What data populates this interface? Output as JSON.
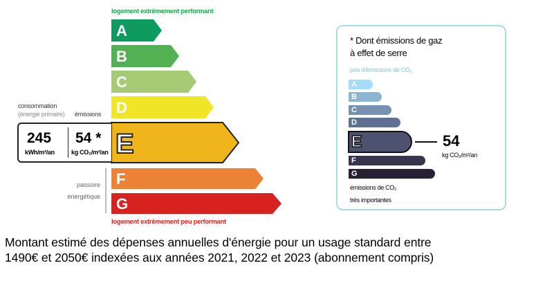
{
  "dpe": {
    "top_caption": "logement extrêmement performant",
    "bottom_caption": "logement extrêmement peu performant",
    "classes": [
      {
        "letter": "A",
        "color": "#0f9b5f"
      },
      {
        "letter": "B",
        "color": "#52b153"
      },
      {
        "letter": "C",
        "color": "#a5cc74"
      },
      {
        "letter": "D",
        "color": "#f0e527"
      },
      {
        "letter": "E",
        "color": "#f0b51a"
      },
      {
        "letter": "F",
        "color": "#eb8235"
      },
      {
        "letter": "G",
        "color": "#d7221f"
      }
    ],
    "current_class": "E",
    "consumption_label_1": "consommation",
    "consumption_label_2": "(énergie primaire)",
    "emissions_label": "émissions",
    "consumption_value": "245",
    "consumption_unit": "kWh/m²/an",
    "emissions_value": "54 *",
    "emissions_unit": "kg CO₂/m²/an",
    "passoire_1": "passoire",
    "passoire_2": "énergétique"
  },
  "ges": {
    "title_1": "* Dont émissions de gaz",
    "title_2": "à effet de serre",
    "top_caption": "peu d'émissions de CO₂",
    "bottom_caption_1": "émissions de CO₂",
    "bottom_caption_2": "très importantes",
    "classes": [
      {
        "letter": "A",
        "color": "#a4dbf8"
      },
      {
        "letter": "B",
        "color": "#8db4d2"
      },
      {
        "letter": "C",
        "color": "#7792b1"
      },
      {
        "letter": "D",
        "color": "#5f7093"
      },
      {
        "letter": "E",
        "color": "#4d5271"
      },
      {
        "letter": "F",
        "color": "#393551"
      },
      {
        "letter": "G",
        "color": "#291f35"
      }
    ],
    "current_class": "E",
    "value": "54",
    "unit": "kg CO₂/m²/an"
  },
  "footer": {
    "line_1": "Montant estimé des dépenses annuelles d'énergie pour un usage standard entre",
    "line_2": "1490€ et 2050€ indexées aux années 2021, 2022 et 2023 (abonnement compris)"
  }
}
